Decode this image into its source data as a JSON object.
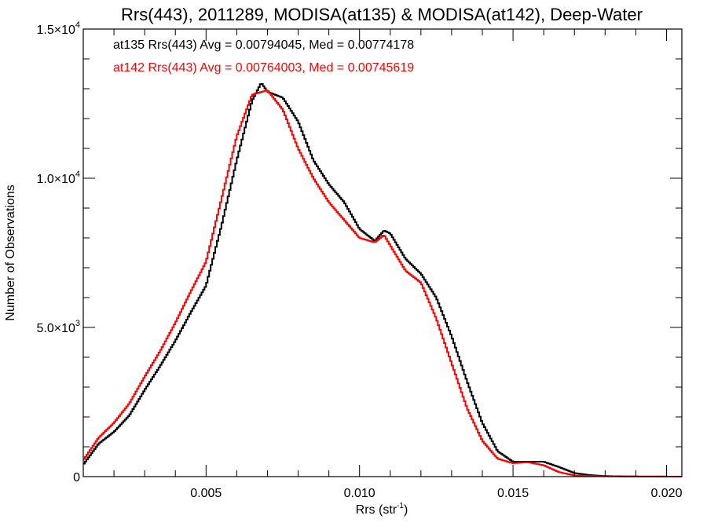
{
  "chart_data": {
    "type": "line",
    "title": "Rrs(443), 2011289, MODISA(at135) & MODISA(at142), Deep-Water",
    "xlabel": "Rrs (str",
    "xlabel_sup": "-1",
    "xlabel_end": ")",
    "ylabel": "Number of Observations",
    "xlim": [
      0.001,
      0.0205
    ],
    "ylim": [
      0,
      15000
    ],
    "x_ticks": [
      {
        "value": 0.005,
        "label": "0.005"
      },
      {
        "value": 0.01,
        "label": "0.010"
      },
      {
        "value": 0.015,
        "label": "0.015"
      },
      {
        "value": 0.02,
        "label": "0.020"
      }
    ],
    "y_ticks": [
      {
        "value": 0,
        "label": "0",
        "sup": ""
      },
      {
        "value": 5000,
        "label": "5.0×10",
        "sup": "3"
      },
      {
        "value": 10000,
        "label": "1.0×10",
        "sup": "4"
      },
      {
        "value": 15000,
        "label": "1.5×10",
        "sup": "4"
      }
    ],
    "x_minor_step": 0.001,
    "y_minor_step": 1000,
    "grid": false,
    "legend": "top-left",
    "series": [
      {
        "name": "at135 Rrs(443) Avg = 0.00794045, Med = 0.00774178",
        "color": "#000000",
        "points": [
          [
            0.001,
            400
          ],
          [
            0.0015,
            1100
          ],
          [
            0.002,
            1500
          ],
          [
            0.0025,
            2050
          ],
          [
            0.003,
            2900
          ],
          [
            0.0035,
            3700
          ],
          [
            0.004,
            4550
          ],
          [
            0.0045,
            5500
          ],
          [
            0.005,
            6400
          ],
          [
            0.0055,
            8400
          ],
          [
            0.006,
            10600
          ],
          [
            0.0065,
            12600
          ],
          [
            0.0068,
            13200
          ],
          [
            0.007,
            12900
          ],
          [
            0.0075,
            12700
          ],
          [
            0.008,
            11900
          ],
          [
            0.0085,
            10600
          ],
          [
            0.009,
            9800
          ],
          [
            0.0095,
            9200
          ],
          [
            0.01,
            8300
          ],
          [
            0.0105,
            7900
          ],
          [
            0.0108,
            8250
          ],
          [
            0.011,
            8150
          ],
          [
            0.0115,
            7300
          ],
          [
            0.012,
            6800
          ],
          [
            0.0125,
            6000
          ],
          [
            0.013,
            4700
          ],
          [
            0.0135,
            3200
          ],
          [
            0.014,
            1800
          ],
          [
            0.0145,
            850
          ],
          [
            0.015,
            500
          ],
          [
            0.0155,
            500
          ],
          [
            0.016,
            500
          ],
          [
            0.0165,
            320
          ],
          [
            0.017,
            120
          ],
          [
            0.0175,
            50
          ],
          [
            0.018,
            20
          ],
          [
            0.0185,
            10
          ],
          [
            0.019,
            5
          ],
          [
            0.0205,
            0
          ]
        ]
      },
      {
        "name": "at142 Rrs(443) Avg = 0.00764003, Med = 0.00745619",
        "color": "#ff0000",
        "points": [
          [
            0.001,
            550
          ],
          [
            0.0015,
            1300
          ],
          [
            0.002,
            1800
          ],
          [
            0.0025,
            2450
          ],
          [
            0.003,
            3350
          ],
          [
            0.0035,
            4200
          ],
          [
            0.004,
            5150
          ],
          [
            0.0045,
            6200
          ],
          [
            0.005,
            7200
          ],
          [
            0.0055,
            9300
          ],
          [
            0.006,
            11400
          ],
          [
            0.0065,
            12800
          ],
          [
            0.007,
            12950
          ],
          [
            0.0075,
            12300
          ],
          [
            0.008,
            11000
          ],
          [
            0.0085,
            10000
          ],
          [
            0.009,
            9200
          ],
          [
            0.0095,
            8600
          ],
          [
            0.01,
            8000
          ],
          [
            0.0105,
            7850
          ],
          [
            0.0108,
            8100
          ],
          [
            0.011,
            7750
          ],
          [
            0.0115,
            6900
          ],
          [
            0.012,
            6500
          ],
          [
            0.0125,
            5300
          ],
          [
            0.013,
            3800
          ],
          [
            0.0135,
            2300
          ],
          [
            0.014,
            1200
          ],
          [
            0.0145,
            600
          ],
          [
            0.015,
            450
          ],
          [
            0.0155,
            480
          ],
          [
            0.016,
            380
          ],
          [
            0.0165,
            150
          ],
          [
            0.017,
            40
          ],
          [
            0.0175,
            20
          ],
          [
            0.018,
            10
          ],
          [
            0.019,
            5
          ],
          [
            0.0205,
            0
          ]
        ]
      }
    ]
  }
}
